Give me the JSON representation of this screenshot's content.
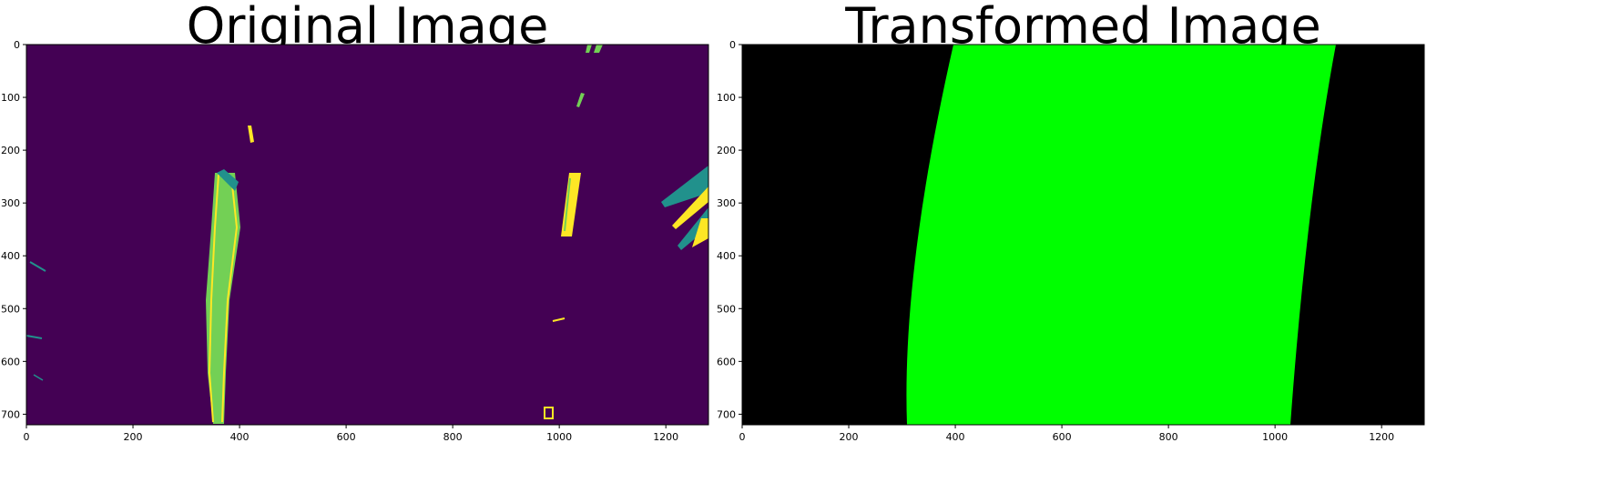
{
  "panels": [
    {
      "title": "Original Image",
      "image_description_name": "binary-lane-pixels",
      "colors": {
        "background": "#440154",
        "lane_mid": "#73d055",
        "lane_bright": "#fde725",
        "edge": "#21918c"
      },
      "x_ticks": [
        "0",
        "200",
        "400",
        "600",
        "800",
        "1000",
        "1200"
      ],
      "y_ticks": [
        "0",
        "100",
        "200",
        "300",
        "400",
        "500",
        "600",
        "700"
      ],
      "xlim": [
        0,
        1280
      ],
      "ylim": [
        720,
        0
      ]
    },
    {
      "title": "Transformed Image",
      "image_description_name": "lane-area-fill",
      "colors": {
        "background": "#000000",
        "fill": "#00ff00"
      },
      "x_ticks": [
        "0",
        "200",
        "400",
        "600",
        "800",
        "1000",
        "1200"
      ],
      "y_ticks": [
        "0",
        "100",
        "200",
        "300",
        "400",
        "500",
        "600",
        "700"
      ],
      "xlim": [
        0,
        1280
      ],
      "ylim": [
        720,
        0
      ]
    }
  ]
}
